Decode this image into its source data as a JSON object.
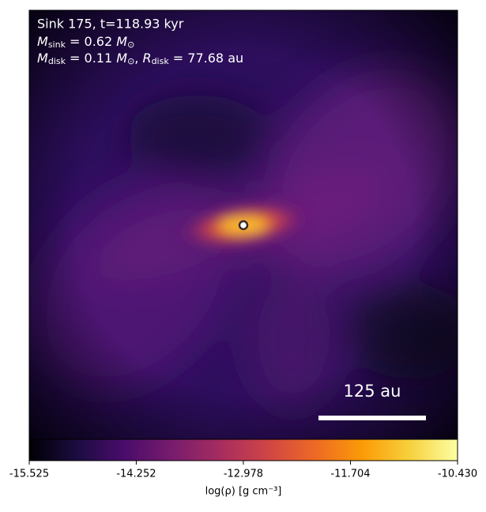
{
  "chart_data": {
    "type": "heatmap",
    "annotations": {
      "line1": "Sink 175, t=118.93 kyr",
      "line2": [
        "M",
        "sink",
        " = 0.62 ",
        "M",
        "⊙"
      ],
      "line3": [
        "M",
        "disk",
        " = 0.11 ",
        "M",
        "⊙",
        ", ",
        "R",
        "disk",
        " = 77.68 au"
      ]
    },
    "scale_bar_label": "125 au",
    "colorbar": {
      "label": "log(ρ) [g cm⁻³]",
      "clim": [
        -15.525,
        -10.43
      ],
      "ticks": [
        -15.525,
        -14.252,
        -12.978,
        -11.704,
        {
          "value": -10.43,
          "label": "-10.430"
        }
      ],
      "colormap": [
        "#000004",
        "#1b0c41",
        "#4a0c6b",
        "#781c6d",
        "#a52c60",
        "#cf4446",
        "#ed6925",
        "#fb9b06",
        "#f7d13d",
        "#fcffa4"
      ]
    }
  }
}
